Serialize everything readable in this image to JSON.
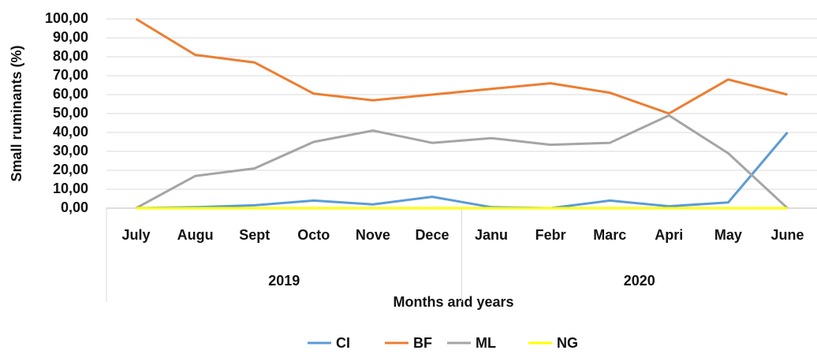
{
  "chart_data": {
    "type": "line",
    "ylabel": "Small ruminants (%)",
    "xlabel": "Months and years",
    "category_groups": [
      {
        "name": "2019",
        "categories": [
          "July",
          "Augu",
          "Sept",
          "Octo",
          "Nove",
          "Dece"
        ]
      },
      {
        "name": "2020",
        "categories": [
          "Janu",
          "Febr",
          "Marc",
          "Apri",
          "May",
          "June"
        ]
      }
    ],
    "series": [
      {
        "name": "CI",
        "color": "#5b9bd5",
        "values": [
          0,
          0.5,
          1.5,
          4,
          2,
          6,
          0.5,
          0,
          4,
          1,
          3,
          40
        ]
      },
      {
        "name": "BF",
        "color": "#ed7d31",
        "values": [
          100,
          81,
          77,
          60.5,
          57,
          60,
          63,
          66,
          61,
          50,
          68,
          60
        ]
      },
      {
        "name": "ML",
        "color": "#a5a5a5",
        "values": [
          0,
          17,
          21,
          35,
          41,
          34.5,
          37,
          33.5,
          34.5,
          49,
          29,
          0
        ]
      },
      {
        "name": "NG",
        "color": "#ffff00",
        "values": [
          0,
          0,
          0,
          0,
          0,
          0,
          0,
          0,
          0,
          0,
          0,
          0
        ]
      }
    ],
    "ylim": [
      0,
      100
    ],
    "yticks": [
      {
        "value": 0,
        "label": "0,00"
      },
      {
        "value": 10,
        "label": "10,00"
      },
      {
        "value": 20,
        "label": "20,00"
      },
      {
        "value": 30,
        "label": "30,00"
      },
      {
        "value": 40,
        "label": "40,00"
      },
      {
        "value": 50,
        "label": "50,00"
      },
      {
        "value": 60,
        "label": "60,00"
      },
      {
        "value": 70,
        "label": "70,00"
      },
      {
        "value": 80,
        "label": "80,00"
      },
      {
        "value": 90,
        "label": "90,00"
      },
      {
        "value": 100,
        "label": "100,00"
      }
    ],
    "grid": true,
    "legend": "bottom"
  }
}
